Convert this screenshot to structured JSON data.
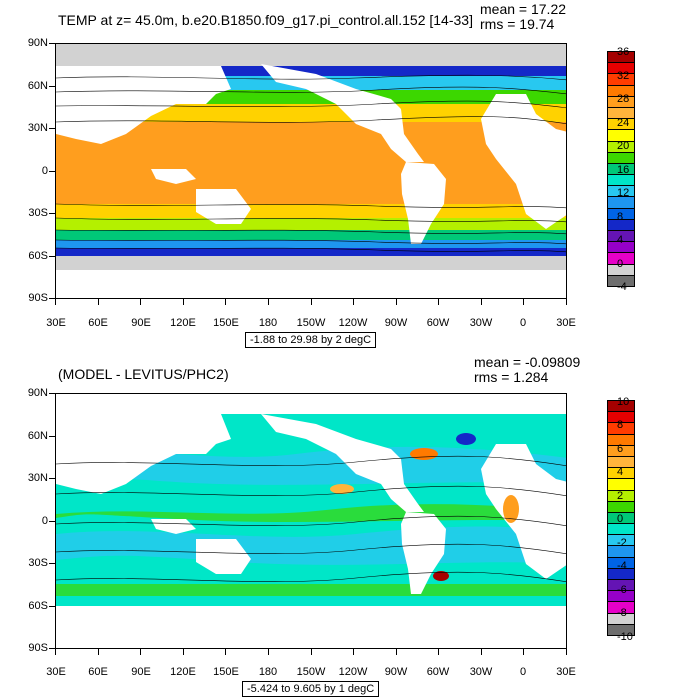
{
  "top": {
    "title": "TEMP at z=  45.0m, b.e20.B1850.f09_g17.pi_control.all.152 [14-33]",
    "mean": "mean = 17.22",
    "rms": "rms = 19.74",
    "range": "-1.88 to 29.98 by 2 degC",
    "ylabels": [
      "90N",
      "60N",
      "30N",
      "0",
      "30S",
      "60S",
      "90S"
    ],
    "xlabels": [
      "30E",
      "60E",
      "90E",
      "120E",
      "150E",
      "180",
      "150W",
      "120W",
      "90W",
      "60W",
      "30W",
      "0",
      "30E"
    ],
    "cbar_labels": [
      "36",
      "32",
      "28",
      "24",
      "20",
      "16",
      "12",
      "8",
      "4",
      "0",
      "-4"
    ],
    "cbar_colors": [
      "#a50000",
      "#e60000",
      "#ff3c00",
      "#ff7a00",
      "#ff9e1e",
      "#ffb43c",
      "#ffd200",
      "#ffff00",
      "#b4f000",
      "#3cd700",
      "#00c878",
      "#00e6c8",
      "#28c8f0",
      "#1e96f0",
      "#0064e6",
      "#1428c8",
      "#6414b4",
      "#9600c8",
      "#e600c8",
      "#d2d2d2",
      "#6e6e6e"
    ]
  },
  "bottom": {
    "title": "(MODEL - LEVITUS/PHC2)",
    "mean": "mean = -0.09809",
    "rms": "rms = 1.284",
    "range": "-5.424 to 9.605 by 1 degC",
    "ylabels": [
      "90N",
      "60N",
      "30N",
      "0",
      "30S",
      "60S",
      "90S"
    ],
    "xlabels": [
      "30E",
      "60E",
      "90E",
      "120E",
      "150E",
      "180",
      "150W",
      "120W",
      "90W",
      "60W",
      "30W",
      "0",
      "30E"
    ],
    "cbar_labels": [
      "10",
      "8",
      "6",
      "4",
      "2",
      "0",
      "-2",
      "-4",
      "-6",
      "-8",
      "-10"
    ],
    "cbar_colors": [
      "#a50000",
      "#e60000",
      "#ff3c00",
      "#ff7a00",
      "#ff9e1e",
      "#ffb43c",
      "#ffd200",
      "#ffff00",
      "#b4f000",
      "#3cd700",
      "#00c878",
      "#00e6c8",
      "#28c8f0",
      "#1e96f0",
      "#0064e6",
      "#1428c8",
      "#6414b4",
      "#9600c8",
      "#e600c8",
      "#d2d2d2",
      "#6e6e6e"
    ]
  }
}
